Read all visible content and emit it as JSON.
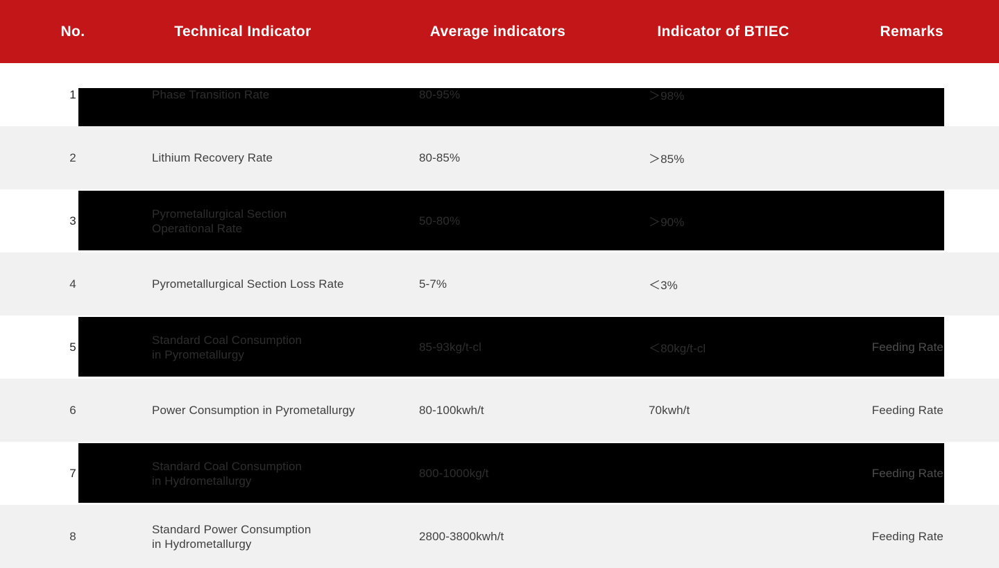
{
  "table": {
    "colors": {
      "header_bg": "#c21618",
      "header_text": "#ffffff",
      "row_bg": "#ffffff",
      "row_alt_bg": "#f1f1f1",
      "highlight_band": "#000000",
      "body_text": "#404040"
    },
    "header": {
      "columns": [
        "No.",
        "Technical Indicator",
        "Average indicators",
        "Indicator of BTIEC",
        "Remarks"
      ]
    },
    "rows": [
      {
        "no": "1",
        "indicator": [
          "Phase Transition Rate"
        ],
        "average": "80-95%",
        "btiec": "＞98%",
        "remarks": "",
        "banded": true,
        "band_style": "partial"
      },
      {
        "no": "2",
        "indicator": [
          "Lithium Recovery Rate"
        ],
        "average": "80-85%",
        "btiec": "＞85%",
        "remarks": "",
        "banded": false,
        "band_style": ""
      },
      {
        "no": "3",
        "indicator": [
          "Pyrometallurgical Section",
          "Operational Rate"
        ],
        "average": "50-80%",
        "btiec": "＞90%",
        "remarks": "",
        "banded": true,
        "band_style": "full"
      },
      {
        "no": "4",
        "indicator": [
          "Pyrometallurgical Section Loss Rate"
        ],
        "average": "5-7%",
        "btiec": "＜3%",
        "remarks": "",
        "banded": false,
        "band_style": ""
      },
      {
        "no": "5",
        "indicator": [
          "Standard Coal Consumption",
          "in Pyrometallurgy"
        ],
        "average": "85-93kg/t-cl",
        "btiec": "＜80kg/t-cl",
        "remarks": "Feeding Rate",
        "banded": true,
        "band_style": "full"
      },
      {
        "no": "6",
        "indicator": [
          "Power Consumption in Pyrometallurgy"
        ],
        "average": "80-100kwh/t",
        "btiec": "70kwh/t",
        "remarks": "Feeding Rate",
        "banded": false,
        "band_style": ""
      },
      {
        "no": "7",
        "indicator": [
          "Standard Coal Consumption",
          "in Hydrometallurgy"
        ],
        "average": "800-1000kg/t",
        "btiec": "",
        "remarks": "Feeding Rate",
        "banded": true,
        "band_style": "full"
      },
      {
        "no": "8",
        "indicator": [
          "Standard Power Consumption",
          "in Hydrometallurgy"
        ],
        "average": "2800-3800kwh/t",
        "btiec": "",
        "remarks": "Feeding Rate",
        "banded": false,
        "band_style": ""
      }
    ]
  }
}
